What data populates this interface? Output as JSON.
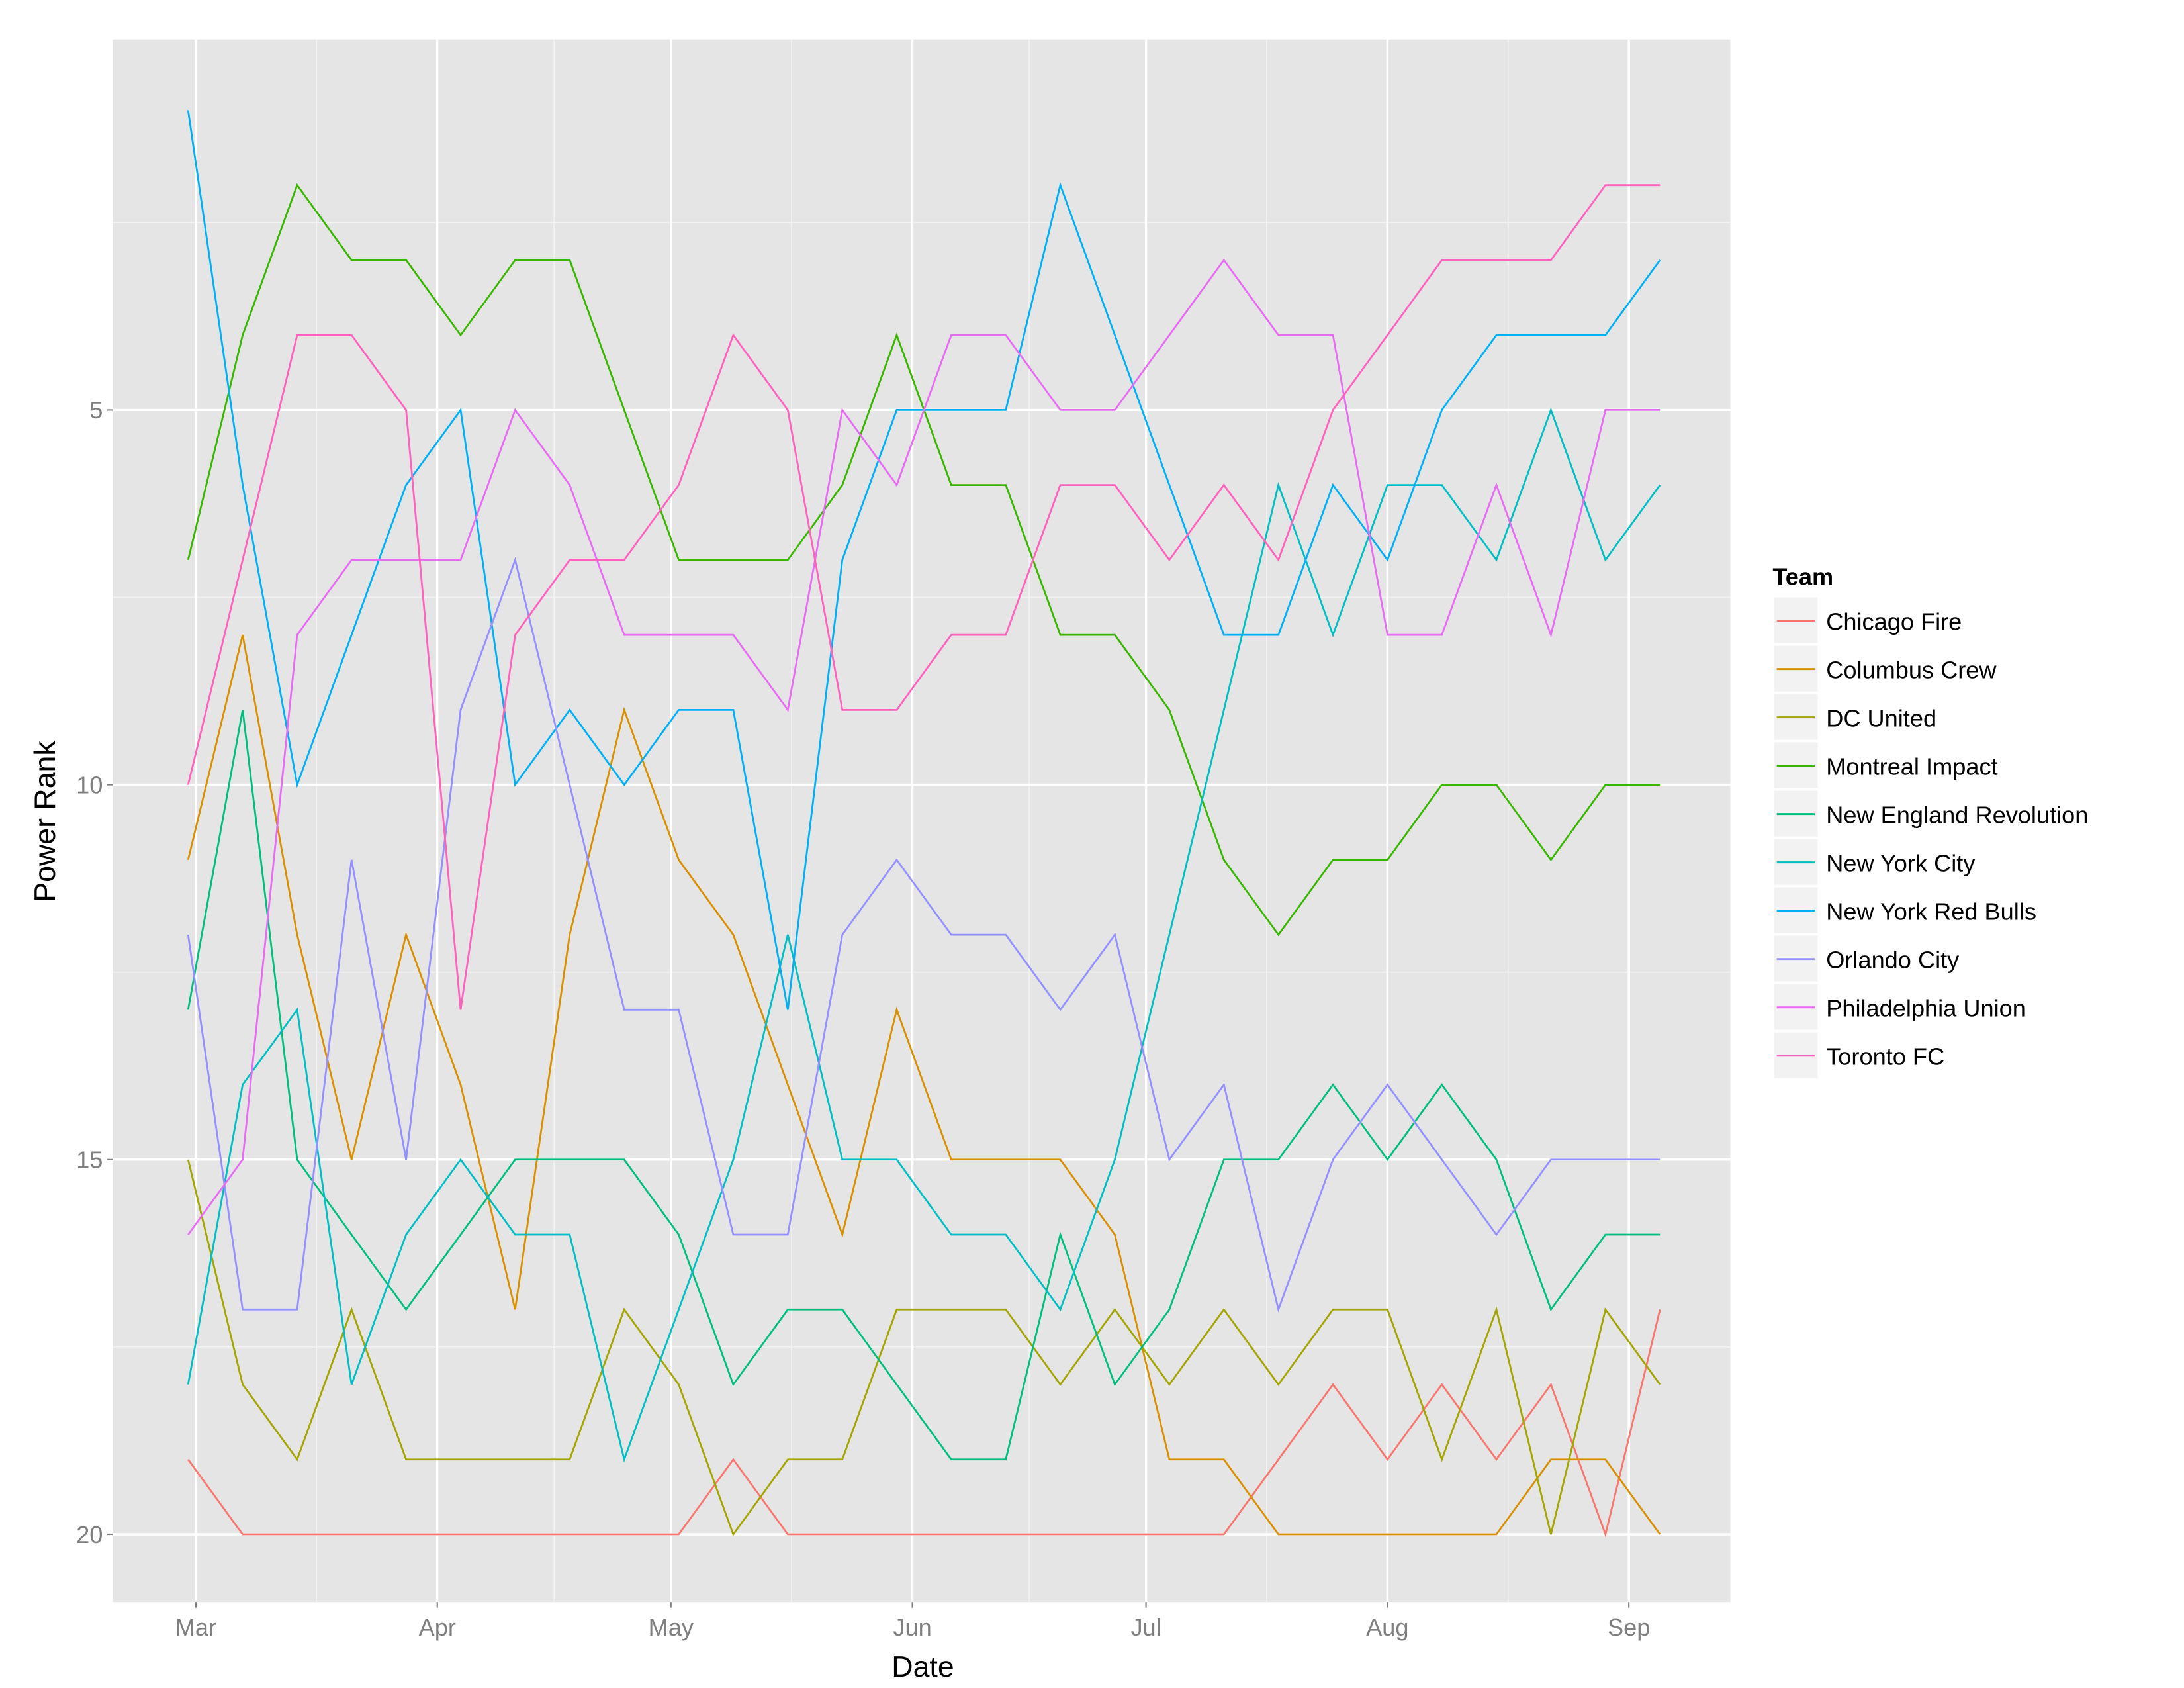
{
  "chart_data": {
    "type": "line",
    "title": "",
    "xlabel": "Date",
    "ylabel": "Power Rank",
    "x_tick_labels": [
      "Mar",
      "Apr",
      "May",
      "Jun",
      "Jul",
      "Aug",
      "Sep"
    ],
    "x_tick_dates": [
      "2015-03-01",
      "2015-04-01",
      "2015-05-01",
      "2015-06-01",
      "2015-07-01",
      "2015-08-01",
      "2015-09-01"
    ],
    "y_ticks": [
      5,
      10,
      15,
      20
    ],
    "y_reversed": true,
    "ylim": [
      0.1,
      21.5
    ],
    "grid": true,
    "legend": {
      "title": "Team",
      "placement": "right"
    },
    "x": [
      "2015-02-28",
      "2015-03-07",
      "2015-03-14",
      "2015-03-21",
      "2015-03-28",
      "2015-04-04",
      "2015-04-11",
      "2015-04-18",
      "2015-04-25",
      "2015-05-02",
      "2015-05-09",
      "2015-05-16",
      "2015-05-23",
      "2015-05-30",
      "2015-06-06",
      "2015-06-13",
      "2015-06-20",
      "2015-06-27",
      "2015-07-04",
      "2015-07-11",
      "2015-07-18",
      "2015-07-25",
      "2015-08-01",
      "2015-08-08",
      "2015-08-15",
      "2015-08-22",
      "2015-08-29",
      "2015-09-05"
    ],
    "series": [
      {
        "name": "Chicago Fire",
        "color": "#F8766D",
        "values": [
          19,
          20,
          20,
          20,
          20,
          20,
          20,
          20,
          20,
          20,
          19,
          20,
          20,
          20,
          20,
          20,
          20,
          20,
          20,
          20,
          19,
          18,
          19,
          18,
          19,
          18,
          20,
          17
        ]
      },
      {
        "name": "Columbus Crew",
        "color": "#D89000",
        "values": [
          11,
          8,
          12,
          15,
          12,
          14,
          17,
          12,
          9,
          11,
          12,
          14,
          16,
          13,
          15,
          15,
          15,
          16,
          19,
          19,
          20,
          20,
          20,
          20,
          20,
          19,
          19,
          20
        ]
      },
      {
        "name": "DC United",
        "color": "#A3A500",
        "values": [
          15,
          18,
          19,
          17,
          19,
          19,
          19,
          19,
          17,
          18,
          20,
          19,
          19,
          17,
          17,
          17,
          18,
          17,
          18,
          17,
          18,
          17,
          17,
          19,
          17,
          20,
          17,
          18
        ]
      },
      {
        "name": "Montreal Impact",
        "color": "#39B600",
        "values": [
          7,
          4,
          2,
          3,
          3,
          4,
          3,
          3,
          5,
          7,
          7,
          7,
          6,
          4,
          6,
          6,
          8,
          8,
          9,
          11,
          12,
          11,
          11,
          10,
          10,
          11,
          10,
          10
        ]
      },
      {
        "name": "New England Revolution",
        "color": "#00BF7D",
        "values": [
          13,
          9,
          15,
          16,
          17,
          16,
          15,
          15,
          15,
          16,
          18,
          17,
          17,
          18,
          19,
          19,
          16,
          18,
          17,
          15,
          15,
          14,
          15,
          14,
          15,
          17,
          16,
          16
        ]
      },
      {
        "name": "New York City",
        "color": "#00BFC4",
        "values": [
          18,
          14,
          13,
          18,
          16,
          15,
          16,
          16,
          19,
          17,
          15,
          12,
          15,
          15,
          16,
          16,
          17,
          15,
          12,
          9,
          6,
          8,
          6,
          6,
          7,
          5,
          7,
          6
        ]
      },
      {
        "name": "New York Red Bulls",
        "color": "#00B0F6",
        "values": [
          1,
          6,
          10,
          8,
          6,
          5,
          10,
          9,
          10,
          9,
          9,
          13,
          7,
          5,
          5,
          5,
          2,
          4,
          6,
          8,
          8,
          6,
          7,
          5,
          4,
          4,
          4,
          3
        ]
      },
      {
        "name": "Orlando City",
        "color": "#9590FF",
        "values": [
          12,
          17,
          17,
          11,
          15,
          9,
          7,
          10,
          13,
          13,
          16,
          16,
          12,
          11,
          12,
          12,
          13,
          12,
          15,
          14,
          17,
          15,
          14,
          15,
          16,
          15,
          15,
          15
        ]
      },
      {
        "name": "Philadelphia Union",
        "color": "#E76BF3",
        "values": [
          16,
          15,
          8,
          7,
          7,
          7,
          5,
          6,
          8,
          8,
          8,
          9,
          5,
          6,
          4,
          4,
          5,
          5,
          4,
          3,
          4,
          4,
          8,
          8,
          6,
          8,
          5,
          5
        ]
      },
      {
        "name": "Toronto FC",
        "color": "#FF62BC",
        "values": [
          10,
          7,
          4,
          4,
          5,
          13,
          8,
          7,
          7,
          6,
          4,
          5,
          9,
          9,
          8,
          8,
          6,
          6,
          7,
          6,
          7,
          5,
          4,
          3,
          3,
          3,
          2,
          2
        ]
      }
    ]
  }
}
